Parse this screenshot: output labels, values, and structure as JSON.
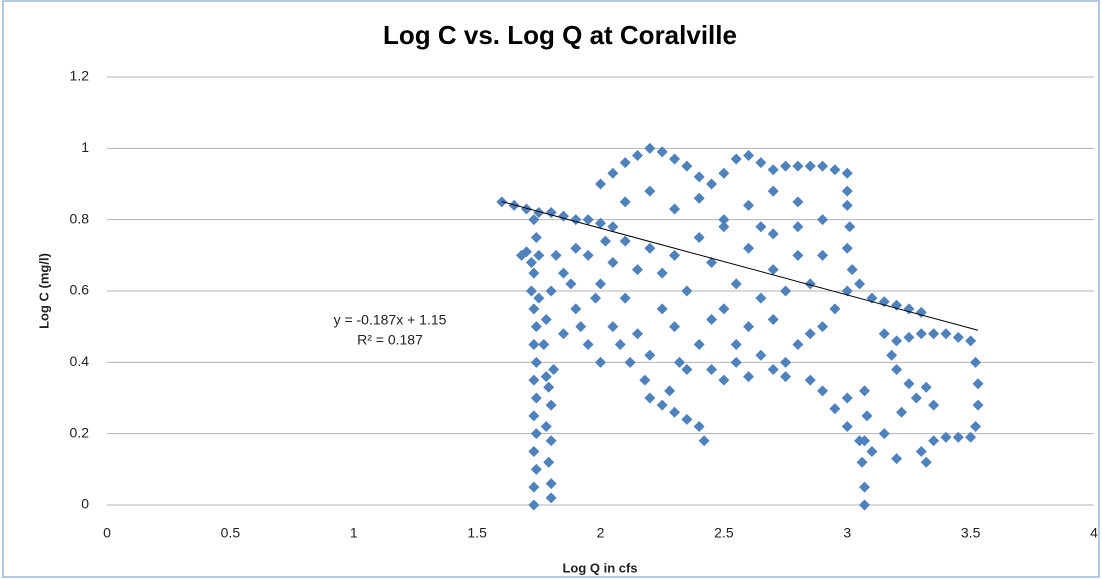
{
  "chart_data": {
    "type": "scatter",
    "title": "Log C vs. Log Q at Coralville",
    "x_label": "Log Q in cfs",
    "y_label": "Log C (mg/l)",
    "color": "#4f81bd",
    "grid": true,
    "xlim": [
      0,
      4
    ],
    "xticks": [
      0,
      0.5,
      1,
      1.5,
      2,
      2.5,
      3,
      3.5,
      4
    ],
    "ylim": [
      0,
      1.2
    ],
    "yticks": [
      0,
      0.2,
      0.4,
      0.6,
      0.8,
      1,
      1.2
    ],
    "trendline": {
      "label": "y = -0.187x + 1.15",
      "r2_label": "R² = 0.187",
      "slope": -0.187,
      "intercept": 1.15,
      "x": [
        1.6,
        3.53
      ]
    },
    "x": [
      1.73,
      1.73,
      1.74,
      1.73,
      1.74,
      1.73,
      1.74,
      1.73,
      1.74,
      1.73,
      1.74,
      1.73,
      1.72,
      1.73,
      1.75,
      1.74,
      1.73,
      1.7,
      1.68,
      1.72,
      1.8,
      1.8,
      1.79,
      1.8,
      1.78,
      1.8,
      1.79,
      1.81,
      1.78,
      1.77,
      1.6,
      1.65,
      1.7,
      1.75,
      1.8,
      1.85,
      1.9,
      1.95,
      2.0,
      2.05,
      1.8,
      1.85,
      1.9,
      1.95,
      2.0,
      2.05,
      2.1,
      2.15,
      2.2,
      2.25,
      1.85,
      1.9,
      1.95,
      2.0,
      2.05,
      2.1,
      2.15,
      2.2,
      2.25,
      2.3,
      2.3,
      2.35,
      2.4,
      2.45,
      2.5,
      2.55,
      2.6,
      2.65,
      2.7,
      2.75,
      2.35,
      2.4,
      2.45,
      2.5,
      2.55,
      2.6,
      2.65,
      2.7,
      2.8,
      2.85,
      1.75,
      1.78,
      1.82,
      1.88,
      1.92,
      1.98,
      2.02,
      2.08,
      2.12,
      2.18,
      2.0,
      2.05,
      2.1,
      2.15,
      2.2,
      2.25,
      2.3,
      2.35,
      2.4,
      2.45,
      2.5,
      2.55,
      2.6,
      2.65,
      2.7,
      2.75,
      2.8,
      2.85,
      2.9,
      2.95,
      3.0,
      3.0,
      3.0,
      3.01,
      3.0,
      3.02,
      3.05,
      2.9,
      2.8,
      2.7,
      2.1,
      2.2,
      2.3,
      2.4,
      2.5,
      2.6,
      2.7,
      2.8,
      2.9,
      3.0,
      3.1,
      3.15,
      3.2,
      3.25,
      3.3,
      2.95,
      2.9,
      2.85,
      2.8,
      2.75,
      3.15,
      3.2,
      3.25,
      3.3,
      3.35,
      3.4,
      3.45,
      3.5,
      3.52,
      3.53,
      3.53,
      3.52,
      3.5,
      3.45,
      3.4,
      3.35,
      3.3,
      3.32,
      3.35,
      3.32,
      3.28,
      3.25,
      3.2,
      3.18,
      3.22,
      3.15,
      3.1,
      3.05,
      3.0,
      3.2,
      3.07,
      3.07,
      3.06,
      3.07,
      3.08,
      3.07,
      3.0,
      2.95,
      2.9,
      2.85,
      2.2,
      2.25,
      2.3,
      2.35,
      2.4,
      2.42,
      2.28,
      2.32,
      2.45,
      2.55,
      2.6,
      2.7,
      2.75,
      2.65,
      2.5
    ],
    "values": [
      0.0,
      0.05,
      0.1,
      0.15,
      0.2,
      0.25,
      0.3,
      0.35,
      0.4,
      0.45,
      0.5,
      0.55,
      0.6,
      0.65,
      0.7,
      0.75,
      0.8,
      0.71,
      0.7,
      0.68,
      0.02,
      0.06,
      0.12,
      0.18,
      0.22,
      0.28,
      0.33,
      0.38,
      0.36,
      0.45,
      0.85,
      0.84,
      0.83,
      0.82,
      0.82,
      0.81,
      0.8,
      0.8,
      0.79,
      0.78,
      0.6,
      0.65,
      0.55,
      0.7,
      0.62,
      0.5,
      0.58,
      0.66,
      0.72,
      0.55,
      0.48,
      0.72,
      0.45,
      0.4,
      0.68,
      0.74,
      0.48,
      0.42,
      0.65,
      0.7,
      0.5,
      0.6,
      0.45,
      0.68,
      0.55,
      0.62,
      0.72,
      0.58,
      0.66,
      0.6,
      0.38,
      0.75,
      0.52,
      0.78,
      0.45,
      0.5,
      0.78,
      0.52,
      0.7,
      0.62,
      0.58,
      0.52,
      0.7,
      0.62,
      0.5,
      0.58,
      0.74,
      0.45,
      0.4,
      0.35,
      0.9,
      0.93,
      0.96,
      0.98,
      1.0,
      0.99,
      0.97,
      0.95,
      0.92,
      0.9,
      0.93,
      0.97,
      0.98,
      0.96,
      0.94,
      0.95,
      0.95,
      0.95,
      0.95,
      0.94,
      0.93,
      0.88,
      0.84,
      0.78,
      0.72,
      0.66,
      0.62,
      0.8,
      0.85,
      0.88,
      0.85,
      0.88,
      0.83,
      0.86,
      0.8,
      0.84,
      0.76,
      0.78,
      0.7,
      0.6,
      0.58,
      0.57,
      0.56,
      0.55,
      0.54,
      0.55,
      0.5,
      0.48,
      0.45,
      0.4,
      0.48,
      0.46,
      0.47,
      0.48,
      0.48,
      0.48,
      0.47,
      0.46,
      0.4,
      0.34,
      0.28,
      0.22,
      0.19,
      0.19,
      0.19,
      0.18,
      0.15,
      0.12,
      0.28,
      0.33,
      0.3,
      0.34,
      0.38,
      0.42,
      0.26,
      0.2,
      0.15,
      0.18,
      0.22,
      0.13,
      0.0,
      0.05,
      0.12,
      0.18,
      0.25,
      0.32,
      0.3,
      0.27,
      0.32,
      0.35,
      0.3,
      0.28,
      0.26,
      0.24,
      0.22,
      0.18,
      0.32,
      0.4,
      0.38,
      0.4,
      0.36,
      0.38,
      0.36,
      0.42,
      0.35
    ]
  }
}
